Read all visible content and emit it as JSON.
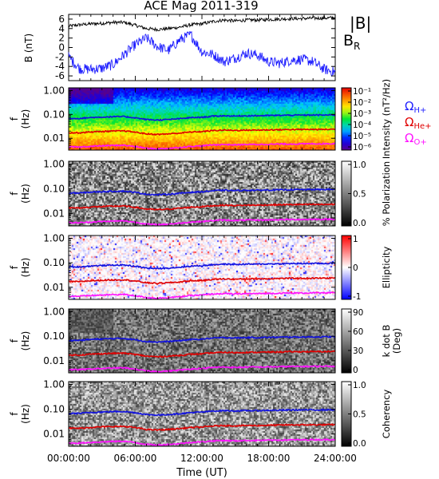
{
  "title": "ACE Mag 2011-319",
  "x_axis": {
    "label": "Time (UT)",
    "tick_labels": [
      "00:00:00",
      "06:00:00",
      "12:00:00",
      "18:00:00",
      "24:00:00"
    ]
  },
  "colors": {
    "H": "#1010e0",
    "He": "#e00000",
    "O": "#ff10ff",
    "B_total": "#000000",
    "B_R": "#2020ff",
    "cyclotron_label_H": "#2020ff",
    "cyclotron_label_He": "#e00000",
    "cyclotron_label_O": "#ff10ff"
  },
  "cyclotron_labels": {
    "H": "ΩH+",
    "He": "ΩHe+",
    "O": "ΩO+"
  },
  "chart_data": [
    {
      "type": "line",
      "panel": "magnetic-field",
      "ylabel": "B\n(nT)",
      "ylim": [
        -7,
        7
      ],
      "y_ticks": [
        -6,
        -4,
        -2,
        0,
        2,
        4,
        6
      ],
      "legend": [
        "|B|",
        "BR"
      ],
      "x_hours": [
        0,
        1,
        2,
        3,
        4,
        5,
        6,
        7,
        8,
        9,
        10,
        11,
        12,
        13,
        14,
        15,
        16,
        17,
        18,
        19,
        20,
        21,
        22,
        23,
        24
      ],
      "series": [
        {
          "name": "|B|",
          "values": [
            4.5,
            4.8,
            5.0,
            5.1,
            5.3,
            5.3,
            4.7,
            4.0,
            3.8,
            4.0,
            4.3,
            4.8,
            5.0,
            5.5,
            5.8,
            5.6,
            5.8,
            5.8,
            5.9,
            6.0,
            6.1,
            6.1,
            6.2,
            6.2,
            6.3
          ]
        },
        {
          "name": "BR",
          "values": [
            -2.0,
            -4.5,
            -4.6,
            -4.4,
            -3.6,
            -1.5,
            0.6,
            2.0,
            0.2,
            -0.6,
            1.6,
            2.7,
            -0.9,
            -1.5,
            -3.0,
            -2.2,
            -1.2,
            -1.6,
            -3.0,
            -3.3,
            -2.7,
            -2.5,
            -3.0,
            -4.6,
            -5.2
          ]
        }
      ]
    },
    {
      "type": "heatmap",
      "panel": "power-spectral-density",
      "ylabel": "f\n(Hz)",
      "y_tick_labels": [
        "1.00",
        "0.10",
        "0.01"
      ],
      "colorbar_label": "Intensity (nT²/Hz)",
      "colorbar_ticks": [
        "10⁻¹",
        "10⁻²",
        "10⁻³",
        "10⁻⁴",
        "10⁻⁵",
        "10⁻⁶"
      ],
      "colorscale": "rainbow"
    },
    {
      "type": "heatmap",
      "panel": "polarization",
      "ylabel": "f\n(Hz)",
      "y_tick_labels": [
        "1.00",
        "0.10",
        "0.01"
      ],
      "colorbar_label": "% Polarization",
      "colorbar_ticks": [
        "1.0",
        "0.5",
        "0.0"
      ],
      "colorscale": "greys"
    },
    {
      "type": "heatmap",
      "panel": "ellipticity",
      "ylabel": "f\n(Hz)",
      "y_tick_labels": [
        "1.00",
        "0.10",
        "0.01"
      ],
      "colorbar_label": "Ellipticity",
      "colorbar_ticks": [
        "1",
        "0",
        "-1"
      ],
      "colorscale": "blue-white-red"
    },
    {
      "type": "heatmap",
      "panel": "wave-normal-angle",
      "ylabel": "f\n(Hz)",
      "y_tick_labels": [
        "1.00",
        "0.10",
        "0.01"
      ],
      "colorbar_label": "k dot B\n(Deg)",
      "colorbar_ticks": [
        "90",
        "60",
        "30",
        "0"
      ],
      "colorscale": "greys"
    },
    {
      "type": "heatmap",
      "panel": "coherency",
      "ylabel": "f\n(Hz)",
      "y_tick_labels": [
        "1.00",
        "0.10",
        "0.01"
      ],
      "colorbar_label": "Coherency",
      "colorbar_ticks": [
        "1.0",
        "0.5",
        "0.0"
      ],
      "colorscale": "greys"
    }
  ],
  "cyclotron_frequencies_hz": {
    "x_hours": [
      0,
      1,
      2,
      3,
      4,
      5,
      6,
      7,
      8,
      9,
      10,
      11,
      12,
      13,
      14,
      15,
      16,
      17,
      18,
      19,
      20,
      21,
      22,
      23,
      24
    ],
    "H": [
      0.068,
      0.068,
      0.074,
      0.077,
      0.08,
      0.081,
      0.072,
      0.061,
      0.058,
      0.061,
      0.066,
      0.073,
      0.076,
      0.084,
      0.088,
      0.085,
      0.088,
      0.088,
      0.09,
      0.091,
      0.093,
      0.093,
      0.094,
      0.094,
      0.096
    ],
    "He": [
      0.017,
      0.017,
      0.0185,
      0.0193,
      0.02,
      0.0203,
      0.018,
      0.0153,
      0.0145,
      0.0153,
      0.0165,
      0.0183,
      0.019,
      0.021,
      0.022,
      0.0213,
      0.022,
      0.022,
      0.0225,
      0.0228,
      0.0233,
      0.0233,
      0.0235,
      0.0235,
      0.024
    ],
    "O": [
      0.0043,
      0.0043,
      0.0046,
      0.0048,
      0.005,
      0.0051,
      0.0045,
      0.0038,
      0.0036,
      0.0038,
      0.0041,
      0.0046,
      0.0048,
      0.0053,
      0.0055,
      0.0053,
      0.0055,
      0.0055,
      0.0056,
      0.0057,
      0.0058,
      0.0058,
      0.0059,
      0.0059,
      0.006
    ]
  }
}
